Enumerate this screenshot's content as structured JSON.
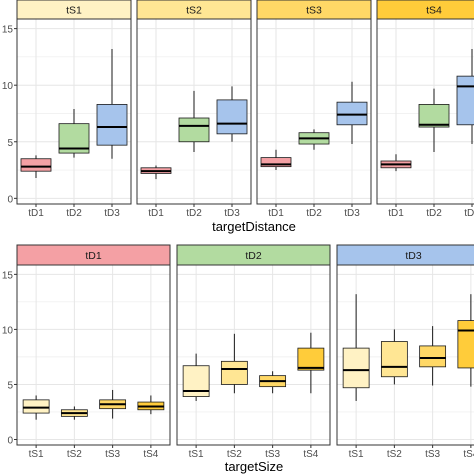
{
  "colors": {
    "tS1": "#fff2c4",
    "tS2": "#ffe694",
    "tS3": "#ffd866",
    "tS4": "#ffcc3a",
    "tD1": "#f4a0a4",
    "tD2": "#b2dba0",
    "tD3": "#a6c4ec",
    "panel_border": "#333333",
    "grid": "#e6e6e6",
    "box_outline": "#1a1a1a"
  },
  "chart_data": [
    {
      "type": "boxplot",
      "facet_variable": "targetSize",
      "xlabel": "targetDistance",
      "ylabel": "",
      "ylim": [
        0,
        15
      ],
      "y_ticks": [
        0,
        5,
        10,
        15
      ],
      "grid": true,
      "categories": [
        "tD1",
        "tD2",
        "tD3"
      ],
      "panels": [
        {
          "strip": "tS1",
          "boxes": [
            {
              "x": "tD1",
              "lower_whisker": 1.8,
              "q1": 2.4,
              "median": 2.8,
              "q3": 3.5,
              "upper_whisker": 3.8
            },
            {
              "x": "tD2",
              "lower_whisker": 3.6,
              "q1": 4.0,
              "median": 4.4,
              "q3": 6.6,
              "upper_whisker": 7.9
            },
            {
              "x": "tD3",
              "lower_whisker": 3.5,
              "q1": 4.7,
              "median": 6.3,
              "q3": 8.3,
              "upper_whisker": 13.2
            }
          ]
        },
        {
          "strip": "tS2",
          "boxes": [
            {
              "x": "tD1",
              "lower_whisker": 1.7,
              "q1": 2.2,
              "median": 2.4,
              "q3": 2.7,
              "upper_whisker": 2.9
            },
            {
              "x": "tD2",
              "lower_whisker": 4.1,
              "q1": 5.0,
              "median": 6.4,
              "q3": 7.1,
              "upper_whisker": 9.5
            },
            {
              "x": "tD3",
              "lower_whisker": 5.0,
              "q1": 5.7,
              "median": 6.6,
              "q3": 8.7,
              "upper_whisker": 9.9
            }
          ]
        },
        {
          "strip": "tS3",
          "boxes": [
            {
              "x": "tD1",
              "lower_whisker": 2.5,
              "q1": 2.8,
              "median": 3.0,
              "q3": 3.6,
              "upper_whisker": 4.3
            },
            {
              "x": "tD2",
              "lower_whisker": 4.3,
              "q1": 4.8,
              "median": 5.3,
              "q3": 5.8,
              "upper_whisker": 6.1
            },
            {
              "x": "tD3",
              "lower_whisker": 4.8,
              "q1": 6.5,
              "median": 7.4,
              "q3": 8.5,
              "upper_whisker": 10.3
            }
          ]
        },
        {
          "strip": "tS4",
          "boxes": [
            {
              "x": "tD1",
              "lower_whisker": 2.4,
              "q1": 2.7,
              "median": 3.0,
              "q3": 3.3,
              "upper_whisker": 3.9
            },
            {
              "x": "tD2",
              "lower_whisker": 4.1,
              "q1": 6.3,
              "median": 6.5,
              "q3": 8.3,
              "upper_whisker": 9.7
            },
            {
              "x": "tD3",
              "lower_whisker": 4.8,
              "q1": 6.5,
              "median": 9.9,
              "q3": 10.8,
              "upper_whisker": 13.2
            }
          ]
        }
      ]
    },
    {
      "type": "boxplot",
      "facet_variable": "targetDistance",
      "xlabel": "targetSize",
      "ylabel": "",
      "ylim": [
        0,
        15
      ],
      "y_ticks": [
        0,
        5,
        10,
        15
      ],
      "grid": true,
      "categories": [
        "tS1",
        "tS2",
        "tS3",
        "tS4"
      ],
      "panels": [
        {
          "strip": "tD1",
          "boxes": [
            {
              "x": "tS1",
              "lower_whisker": 1.8,
              "q1": 2.4,
              "median": 2.9,
              "q3": 3.6,
              "upper_whisker": 4.0
            },
            {
              "x": "tS2",
              "lower_whisker": 1.8,
              "q1": 2.1,
              "median": 2.4,
              "q3": 2.7,
              "upper_whisker": 3.0
            },
            {
              "x": "tS3",
              "lower_whisker": 1.9,
              "q1": 2.8,
              "median": 3.2,
              "q3": 3.6,
              "upper_whisker": 4.5
            },
            {
              "x": "tS4",
              "lower_whisker": 2.3,
              "q1": 2.7,
              "median": 3.0,
              "q3": 3.4,
              "upper_whisker": 4.0
            }
          ]
        },
        {
          "strip": "tD2",
          "boxes": [
            {
              "x": "tS1",
              "lower_whisker": 3.5,
              "q1": 3.9,
              "median": 4.4,
              "q3": 6.7,
              "upper_whisker": 7.8
            },
            {
              "x": "tS2",
              "lower_whisker": 4.2,
              "q1": 5.0,
              "median": 6.4,
              "q3": 7.1,
              "upper_whisker": 9.6
            },
            {
              "x": "tS3",
              "lower_whisker": 4.2,
              "q1": 4.8,
              "median": 5.3,
              "q3": 5.8,
              "upper_whisker": 6.2
            },
            {
              "x": "tS4",
              "lower_whisker": 4.2,
              "q1": 6.3,
              "median": 6.5,
              "q3": 8.3,
              "upper_whisker": 9.7
            }
          ]
        },
        {
          "strip": "tD3",
          "boxes": [
            {
              "x": "tS1",
              "lower_whisker": 3.5,
              "q1": 4.7,
              "median": 6.3,
              "q3": 8.3,
              "upper_whisker": 13.2
            },
            {
              "x": "tS2",
              "lower_whisker": 5.0,
              "q1": 5.7,
              "median": 6.6,
              "q3": 8.9,
              "upper_whisker": 10.0
            },
            {
              "x": "tS3",
              "lower_whisker": 4.9,
              "q1": 6.6,
              "median": 7.4,
              "q3": 8.5,
              "upper_whisker": 10.3
            },
            {
              "x": "tS4",
              "lower_whisker": 4.8,
              "q1": 6.5,
              "median": 9.9,
              "q3": 10.8,
              "upper_whisker": 13.2
            }
          ]
        }
      ]
    }
  ]
}
